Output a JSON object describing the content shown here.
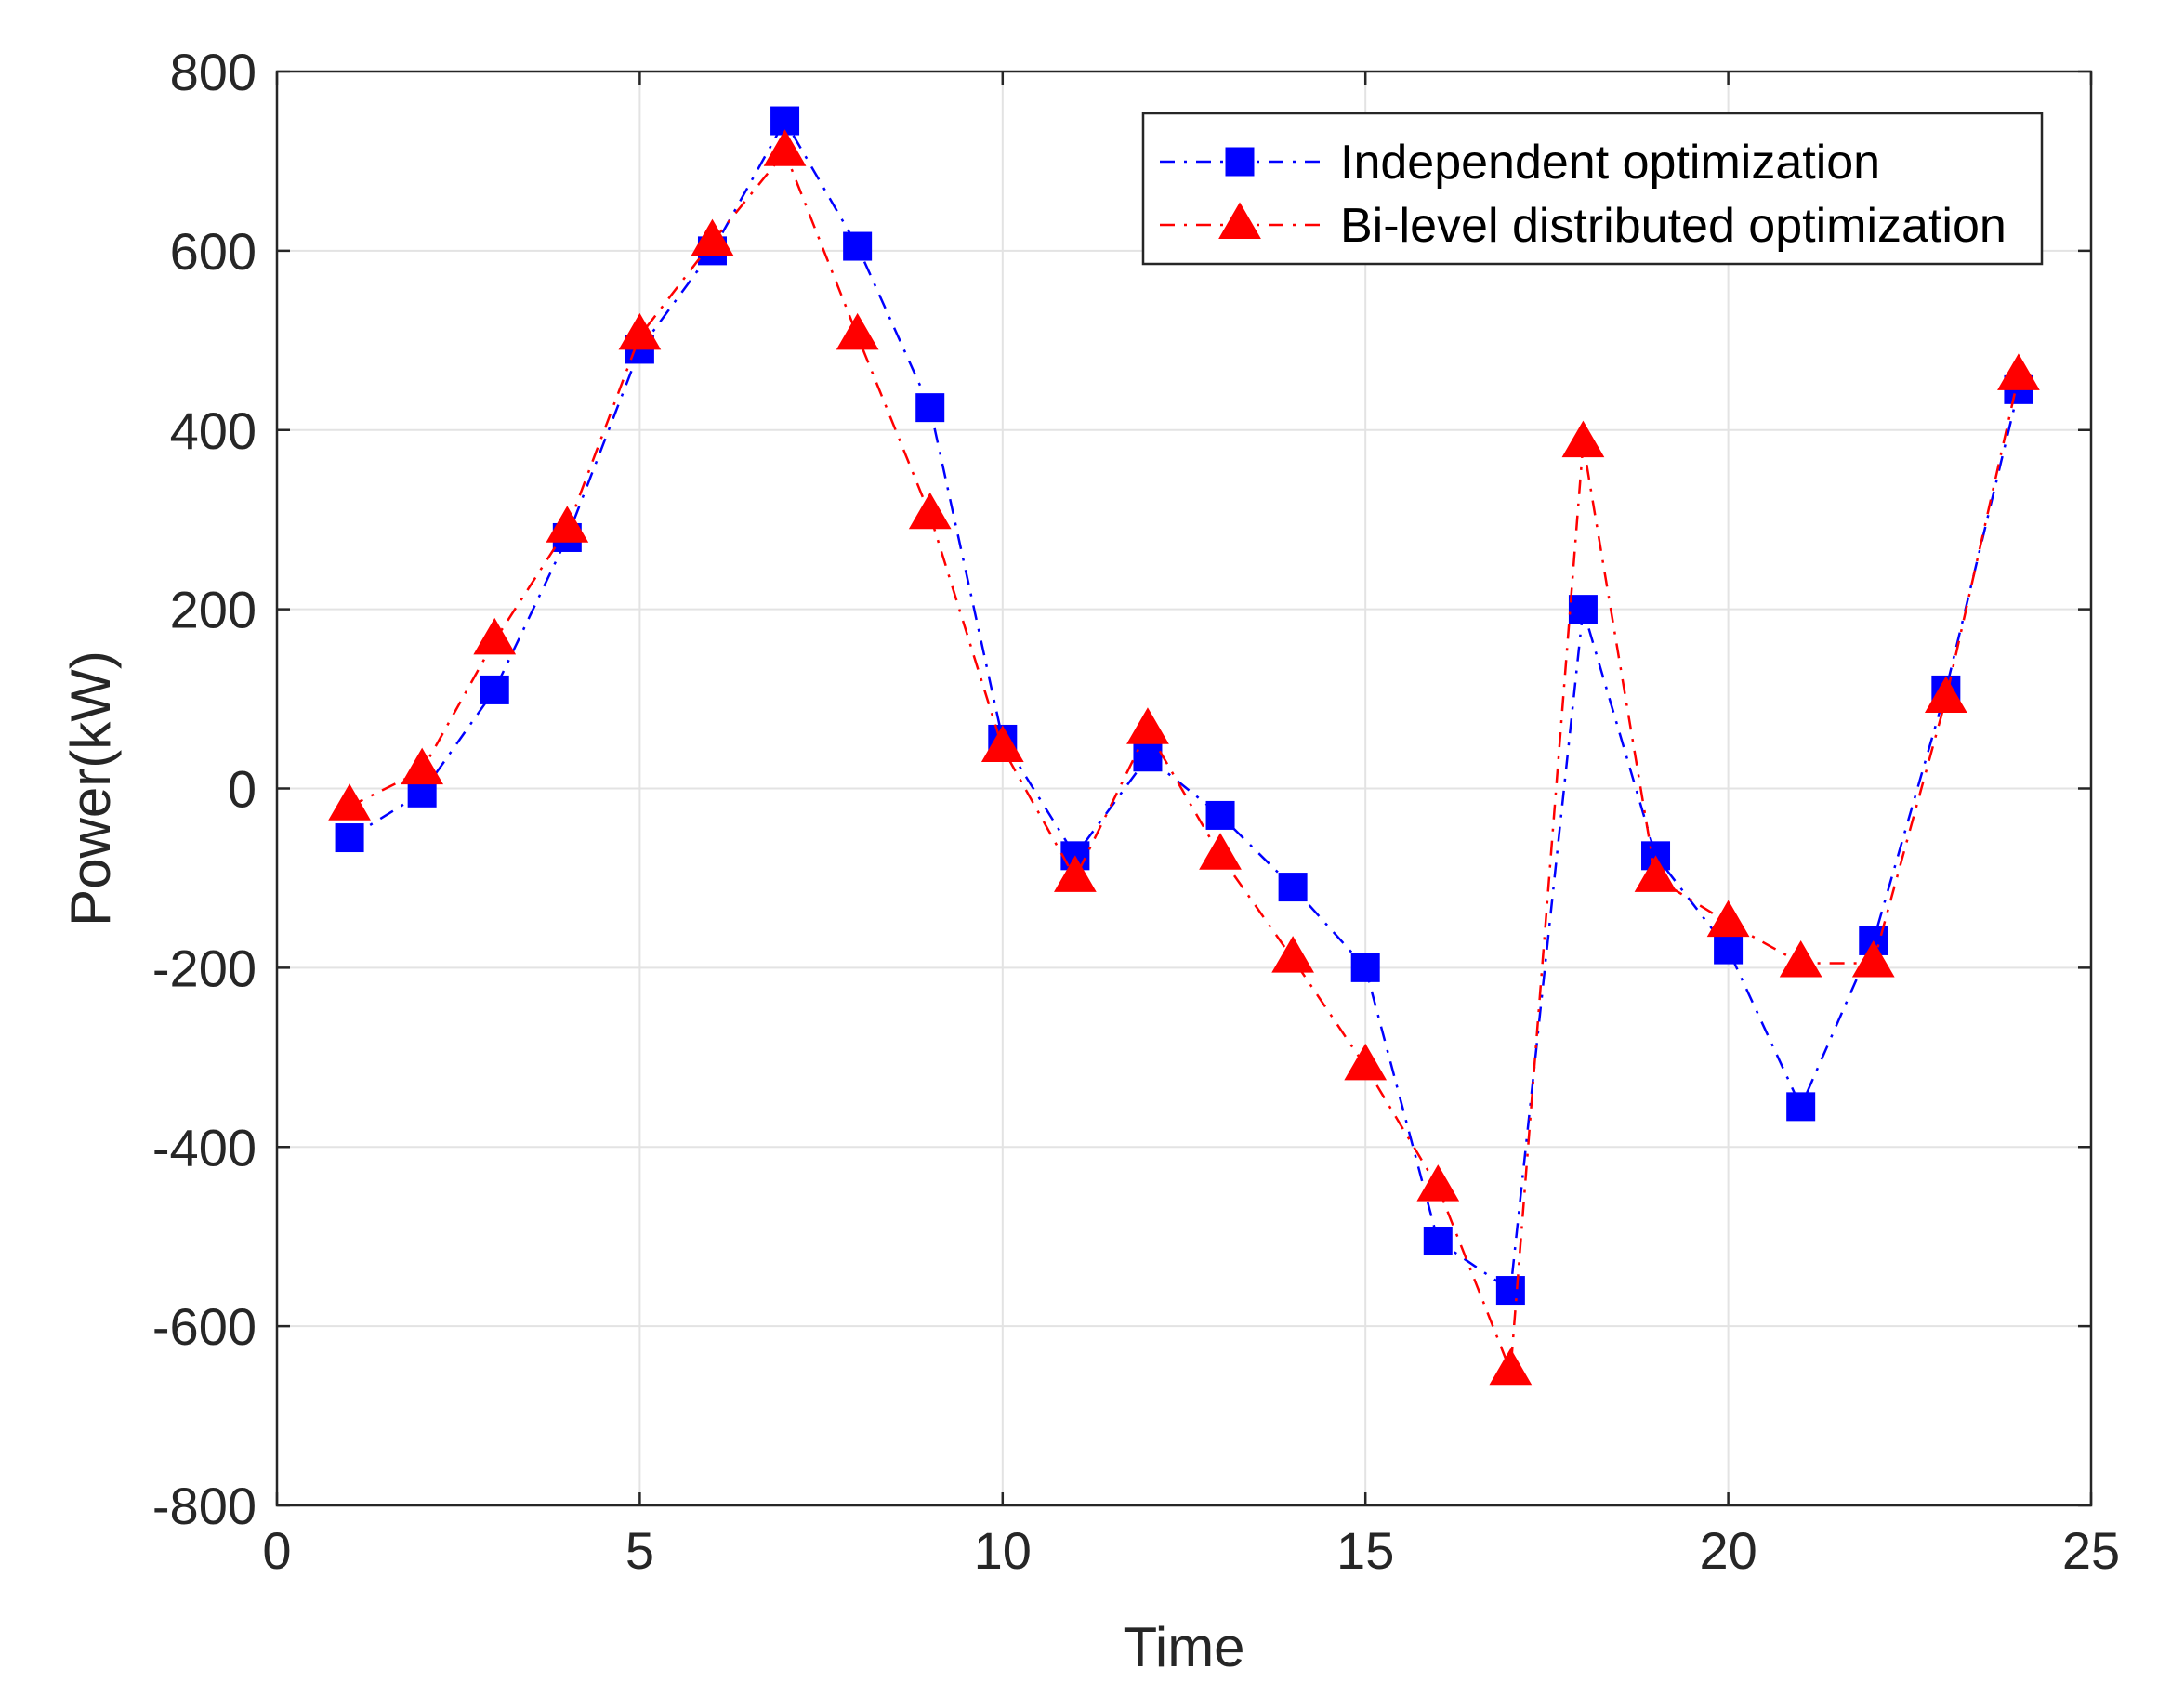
{
  "chart_data": {
    "type": "line",
    "title": "",
    "xlabel": "Time",
    "ylabel": "Power(kW)",
    "xlim": [
      0,
      25
    ],
    "ylim": [
      -800,
      800
    ],
    "xticks": [
      0,
      5,
      10,
      15,
      20,
      25
    ],
    "yticks": [
      -800,
      -600,
      -400,
      -200,
      0,
      200,
      400,
      600,
      800
    ],
    "grid": true,
    "legend_position": "top-right",
    "x": [
      1,
      2,
      3,
      4,
      5,
      6,
      7,
      8,
      9,
      10,
      11,
      12,
      13,
      14,
      15,
      16,
      17,
      18,
      19,
      20,
      21,
      22,
      23,
      24
    ],
    "series": [
      {
        "name": "Independent optimization",
        "color": "#0000ff",
        "marker": "square",
        "line_style": "dash-dot",
        "values": [
          -55,
          -5,
          110,
          280,
          490,
          600,
          745,
          605,
          425,
          55,
          -75,
          35,
          -30,
          -110,
          -200,
          -505,
          -560,
          200,
          -75,
          -180,
          -355,
          -170,
          110,
          445
        ]
      },
      {
        "name": "Bi-level distributed optimization",
        "color": "#ff0000",
        "marker": "triangle",
        "line_style": "dash-dot",
        "values": [
          -20,
          20,
          165,
          290,
          505,
          610,
          710,
          505,
          305,
          45,
          -100,
          65,
          -75,
          -190,
          -310,
          -445,
          -650,
          385,
          -100,
          -150,
          -195,
          -195,
          100,
          460
        ]
      }
    ]
  }
}
